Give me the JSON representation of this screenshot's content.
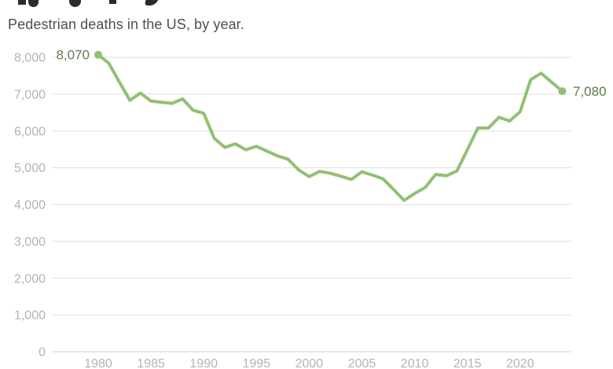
{
  "subtitle": "Pedestrian deaths in the US, by year.",
  "colors": {
    "line": "#93c073",
    "point": "#93c073",
    "value_label": "#5d7a4c",
    "tick_label": "#b3b3b3",
    "gridline": "#e5e5e5",
    "baseline": "#d9d9d9",
    "subtitle": "#4f4f4f",
    "label_mask": "#ffffff"
  },
  "chart_data": {
    "type": "line",
    "title": "",
    "subtitle": "Pedestrian deaths in the US, by year.",
    "xlabel": "",
    "ylabel": "",
    "xlim": [
      1980,
      2024
    ],
    "ylim": [
      0,
      8000
    ],
    "grid": true,
    "legend": false,
    "x": [
      1980,
      1981,
      1982,
      1983,
      1984,
      1985,
      1986,
      1987,
      1988,
      1989,
      1990,
      1991,
      1992,
      1993,
      1994,
      1995,
      1996,
      1997,
      1998,
      1999,
      2000,
      2001,
      2002,
      2003,
      2004,
      2005,
      2006,
      2007,
      2008,
      2009,
      2010,
      2011,
      2012,
      2013,
      2014,
      2015,
      2016,
      2017,
      2018,
      2019,
      2020,
      2021,
      2022,
      2023,
      2024
    ],
    "series": [
      {
        "name": "Pedestrian deaths",
        "values": [
          8070,
          7840,
          7330,
          6830,
          7030,
          6810,
          6780,
          6750,
          6870,
          6560,
          6480,
          5800,
          5550,
          5650,
          5490,
          5580,
          5450,
          5320,
          5230,
          4940,
          4760,
          4900,
          4850,
          4770,
          4680,
          4890,
          4800,
          4700,
          4410,
          4110,
          4300,
          4460,
          4820,
          4780,
          4910,
          5490,
          6080,
          6080,
          6370,
          6270,
          6520,
          7390,
          7570,
          7320,
          7080
        ]
      }
    ],
    "y_ticks": [
      "0",
      "1,000",
      "2,000",
      "3,000",
      "4,000",
      "5,000",
      "6,000",
      "7,000",
      "8,000"
    ],
    "x_ticks": [
      "1980",
      "1985",
      "1990",
      "1995",
      "2000",
      "2005",
      "2010",
      "2015",
      "2020"
    ],
    "x_tick_years": [
      1980,
      1985,
      1990,
      1995,
      2000,
      2005,
      2010,
      2015,
      2020
    ],
    "first_point_label": "8,070",
    "last_point_label": "7,080"
  }
}
